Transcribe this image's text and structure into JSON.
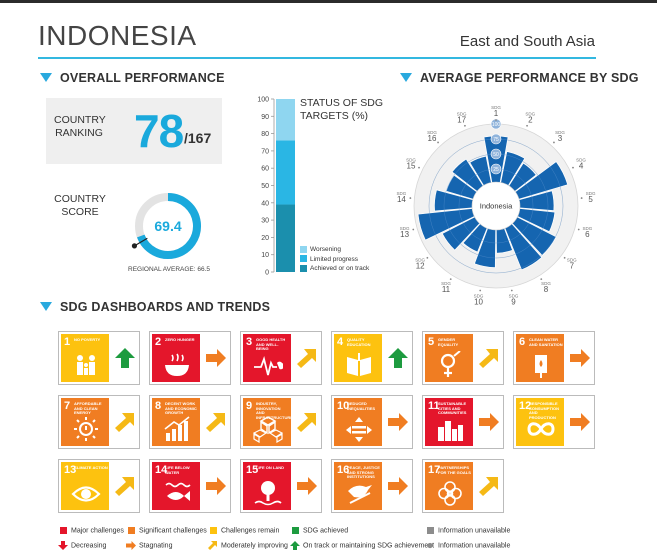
{
  "header": {
    "country": "INDONESIA",
    "region": "East and South Asia"
  },
  "overall": {
    "heading": "OVERALL PERFORMANCE",
    "ranking_label": "COUNTRY RANKING",
    "rank": "78",
    "rank_total": "/167",
    "score_label": "COUNTRY SCORE",
    "score": "69.4",
    "score_value": 69.4,
    "regional_average_label": "REGIONAL AVERAGE: 66.5",
    "regional_average_value": 66.5
  },
  "chart_data": [
    {
      "type": "bar",
      "title": "STATUS OF SDG TARGETS (%)",
      "categories": [
        "Indonesia"
      ],
      "ylim": [
        0,
        100
      ],
      "yticks": [
        "0",
        "10",
        "20",
        "30",
        "40",
        "50",
        "60",
        "70",
        "80",
        "90",
        "100"
      ],
      "series": [
        {
          "name": "Achieved or on track",
          "values": [
            39
          ],
          "color": "#1b8fad"
        },
        {
          "name": "Limited progress",
          "values": [
            37
          ],
          "color": "#2ab6e4"
        },
        {
          "name": "Worsening",
          "values": [
            24
          ],
          "color": "#8fd6f0"
        }
      ]
    },
    {
      "type": "bar",
      "subtype": "polar",
      "title": "AVERAGE PERFORMANCE BY SDG",
      "center_label": "Indonesia",
      "ring_labels": [
        "25",
        "50",
        "75",
        "100"
      ],
      "categories": [
        "SDG 1",
        "SDG 2",
        "SDG 3",
        "SDG 4",
        "SDG 5",
        "SDG 6",
        "SDG 7",
        "SDG 8",
        "SDG 9",
        "SDG 10",
        "SDG 11",
        "SDG 12",
        "SDG 13",
        "SDG 14",
        "SDG 15",
        "SDG 16",
        "SDG 17"
      ],
      "category_prefix": [
        "SDG",
        "SDG",
        "SDG",
        "SDG",
        "SDG",
        "SDG",
        "SDG",
        "SDG",
        "SDG",
        "SDG",
        "SDG",
        "SDG",
        "SDG",
        "SDG",
        "SDG",
        "SDG",
        "SDG"
      ],
      "category_numbers": [
        "1",
        "2",
        "3",
        "4",
        "5",
        "6",
        "7",
        "8",
        "9",
        "10",
        "11",
        "12",
        "13",
        "14",
        "15",
        "16",
        "17"
      ],
      "values": [
        80,
        56,
        48,
        88,
        60,
        62,
        76,
        78,
        42,
        66,
        46,
        64,
        94,
        66,
        50,
        56,
        48
      ],
      "color": "#1565b0"
    }
  ],
  "dashboards": {
    "heading": "SDG DASHBOARDS AND TRENDS",
    "tiles": [
      {
        "num": "1",
        "name": "NO POVERTY",
        "color": "#fdc20f",
        "icon": "family-icon",
        "trend": "up",
        "trend_color": "#1d9b3f"
      },
      {
        "num": "2",
        "name": "ZERO HUNGER",
        "color": "#e4162b",
        "icon": "bowl-icon",
        "trend": "right",
        "trend_color": "#f07d22"
      },
      {
        "num": "3",
        "name": "GOOD HEALTH AND WELL-BEING",
        "color": "#e4162b",
        "icon": "heartbeat-icon",
        "trend": "diag",
        "trend_color": "#f5b916"
      },
      {
        "num": "4",
        "name": "QUALITY EDUCATION",
        "color": "#fdc20f",
        "icon": "book-icon",
        "trend": "up",
        "trend_color": "#1d9b3f"
      },
      {
        "num": "5",
        "name": "GENDER EQUALITY",
        "color": "#f07d22",
        "icon": "gender-icon",
        "trend": "diag",
        "trend_color": "#f5b916"
      },
      {
        "num": "6",
        "name": "CLEAN WATER AND SANITATION",
        "color": "#f07d22",
        "icon": "water-icon",
        "trend": "right",
        "trend_color": "#f07d22"
      },
      {
        "num": "7",
        "name": "AFFORDABLE AND CLEAN ENERGY",
        "color": "#f07d22",
        "icon": "sun-icon",
        "trend": "diag",
        "trend_color": "#f5b916"
      },
      {
        "num": "8",
        "name": "DECENT WORK AND ECONOMIC GROWTH",
        "color": "#f07d22",
        "icon": "growth-icon",
        "trend": "diag",
        "trend_color": "#f5b916"
      },
      {
        "num": "9",
        "name": "INDUSTRY, INNOVATION AND INFRASTRUCTURE",
        "color": "#f07d22",
        "icon": "cubes-icon",
        "trend": "diag",
        "trend_color": "#f5b916"
      },
      {
        "num": "10",
        "name": "REDUCED INEQUALITIES",
        "color": "#f07d22",
        "icon": "equality-icon",
        "trend": "right",
        "trend_color": "#f07d22"
      },
      {
        "num": "11",
        "name": "SUSTAINABLE CITIES AND COMMUNITIES",
        "color": "#e4162b",
        "icon": "city-icon",
        "trend": "right",
        "trend_color": "#f07d22"
      },
      {
        "num": "12",
        "name": "RESPONSIBLE CONSUMPTION AND PRODUCTION",
        "color": "#fdc20f",
        "icon": "infinity-icon",
        "trend": "right",
        "trend_color": "#f07d22"
      },
      {
        "num": "13",
        "name": "CLIMATE ACTION",
        "color": "#fdc20f",
        "icon": "eye-icon",
        "trend": "diag",
        "trend_color": "#f5b916"
      },
      {
        "num": "14",
        "name": "LIFE BELOW WATER",
        "color": "#e4162b",
        "icon": "fish-icon",
        "trend": "right",
        "trend_color": "#f07d22"
      },
      {
        "num": "15",
        "name": "LIFE ON LAND",
        "color": "#e4162b",
        "icon": "tree-icon",
        "trend": "right",
        "trend_color": "#f07d22"
      },
      {
        "num": "16",
        "name": "PEACE, JUSTICE AND STRONG INSTITUTIONS",
        "color": "#f07d22",
        "icon": "dove-icon",
        "trend": "right",
        "trend_color": "#f07d22"
      },
      {
        "num": "17",
        "name": "PARTNERSHIPS FOR THE GOALS",
        "color": "#f07d22",
        "icon": "flower-icon",
        "trend": "diag",
        "trend_color": "#f5b916"
      }
    ]
  },
  "legend": {
    "row1": [
      {
        "label": "Major challenges",
        "color": "#e4162b"
      },
      {
        "label": "Significant challenges",
        "color": "#f07d22"
      },
      {
        "label": "Challenges remain",
        "color": "#fdc20f"
      },
      {
        "label": "SDG achieved",
        "color": "#1d9b3f"
      },
      {
        "label": "Information unavailable",
        "color": "#8c8c8c"
      }
    ],
    "row2": [
      {
        "label": "Decreasing",
        "icon": "arrow-down-icon",
        "color": "#e4162b"
      },
      {
        "label": "Stagnating",
        "icon": "arrow-right-icon",
        "color": "#f07d22"
      },
      {
        "label": "Moderately improving",
        "icon": "arrow-diag-icon",
        "color": "#f5b916"
      },
      {
        "label": "On track or maintaining SDG achievement",
        "icon": "arrow-up-icon",
        "color": "#1d9b3f"
      },
      {
        "label": "Information unavailable",
        "icon": "dot-icon",
        "color": "#8c8c8c"
      }
    ]
  }
}
